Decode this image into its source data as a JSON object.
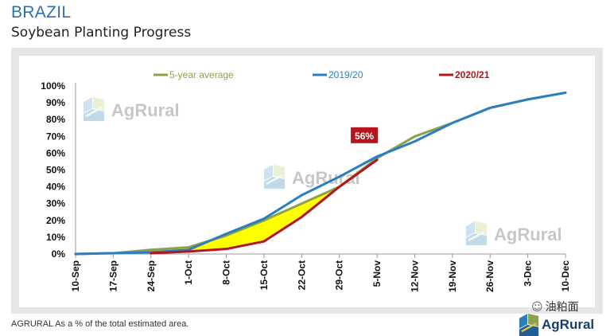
{
  "header": {
    "country": "BRAZIL",
    "subtitle": "Soybean Planting Progress"
  },
  "footer": {
    "source_note": "AGRURAL  As a % of the total estimated area.",
    "wechat_label": "油粕面"
  },
  "watermark": {
    "brand": "AgRural"
  },
  "colors": {
    "avg": "#8ca04f",
    "y2019": "#2a7fbf",
    "y2020": "#b0171f",
    "fill": "#ffff00",
    "callout": "#b8141c"
  },
  "chart_data": {
    "type": "line",
    "categories": [
      "10-Sep",
      "17-Sep",
      "24-Sep",
      "1-Oct",
      "8-Oct",
      "15-Oct",
      "22-Oct",
      "29-Oct",
      "5-Nov",
      "12-Nov",
      "19-Nov",
      "26-Nov",
      "3-Dec",
      "10-Dec"
    ],
    "y_tick_labels": [
      "0%",
      "10%",
      "20%",
      "30%",
      "40%",
      "50%",
      "60%",
      "70%",
      "80%",
      "90%",
      "100%"
    ],
    "ylim": [
      0,
      100
    ],
    "legend_position": "top",
    "grid": false,
    "series": [
      {
        "name": "5-year average",
        "values": [
          0,
          0.5,
          2.5,
          4,
          11,
          20,
          30,
          40,
          57,
          70,
          78,
          87,
          92,
          96
        ]
      },
      {
        "name": "2019/20",
        "values": [
          0,
          0.5,
          1,
          2.5,
          12,
          21,
          35,
          46,
          58,
          67,
          78,
          87,
          92,
          96
        ]
      },
      {
        "name": "2020/21",
        "values": [
          null,
          null,
          0.5,
          1.5,
          3,
          7.5,
          22,
          40,
          56,
          null,
          null,
          null,
          null,
          null
        ]
      }
    ],
    "annotation": {
      "label": "56%",
      "category": "5-Nov",
      "value": 56
    }
  }
}
